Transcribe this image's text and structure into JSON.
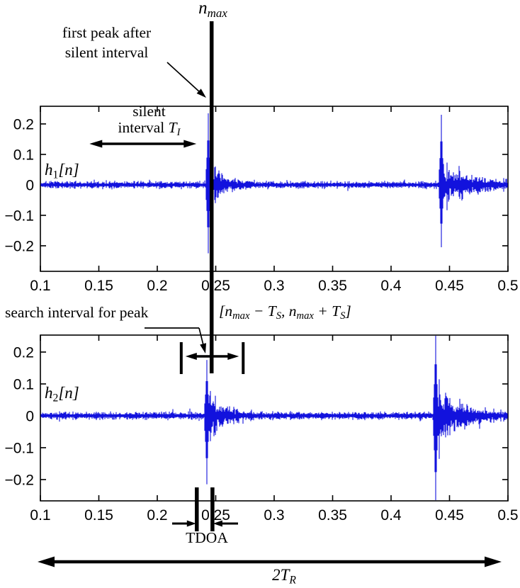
{
  "figure": {
    "bg": "#ffffff",
    "waveform_color": "#1212dd",
    "axis_color": "#000000",
    "text_color": "#000000"
  },
  "annotations": {
    "nmax": {
      "base": "n",
      "sub": "max"
    },
    "first_peak": {
      "line1": "first peak after",
      "line2": "silent interval"
    },
    "silent": {
      "line1": "silent",
      "line2_pre": "interval ",
      "T": "T",
      "T_sub": "I"
    },
    "h1": {
      "base": "h",
      "sub": "1",
      "rest": "[n]"
    },
    "h2": {
      "base": "h",
      "sub": "2",
      "rest": "[n]"
    },
    "search_text": "search interval for peak",
    "interval_expr": {
      "open": "[",
      "n1": "n",
      "sub1": "max",
      "minus": " − ",
      "T1": "T",
      "tsub1": "S",
      "comma": ", ",
      "n2": "n",
      "sub2": "max",
      "plus": " + ",
      "T2": "T",
      "tsub2": "S",
      "close": "]"
    },
    "tdoa": "TDOA",
    "two_tr": {
      "pre": "2",
      "T": "T",
      "sub": "R"
    }
  },
  "chart_data": [
    {
      "type": "line",
      "name": "h1[n]",
      "xlim": [
        0.1,
        0.5
      ],
      "ylim": [
        -0.284,
        0.258
      ],
      "xticks": [
        0.1,
        0.15,
        0.2,
        0.25,
        0.3,
        0.35,
        0.4,
        0.45,
        0.5
      ],
      "xtick_labels": [
        "0.1",
        "0.15",
        "0.2",
        "0.25",
        "0.3",
        "0.35",
        "0.4",
        "0.45",
        "0.5"
      ],
      "yticks": [
        0.2,
        0.1,
        0,
        -0.1,
        -0.2
      ],
      "ytick_labels": [
        "0.2",
        "0.1",
        "0",
        "−0.1",
        "−0.2"
      ],
      "noise_floor": 0.011,
      "bursts": [
        {
          "x": 0.2435,
          "peak_pos": 0.235,
          "peak_neg": -0.225,
          "tail_amp": 0.1,
          "decay": 0.012
        },
        {
          "x": 0.443,
          "peak_pos": 0.23,
          "peak_neg": -0.205,
          "tail_amp": 0.085,
          "decay": 0.025
        }
      ],
      "seed": 7
    },
    {
      "type": "line",
      "name": "h2[n]",
      "xlim": [
        0.1,
        0.5
      ],
      "ylim": [
        -0.267,
        0.253
      ],
      "xticks": [
        0.1,
        0.15,
        0.2,
        0.25,
        0.3,
        0.35,
        0.4,
        0.45,
        0.5
      ],
      "xtick_labels": [
        "0.1",
        "0.15",
        "0.2",
        "0.25",
        "0.3",
        "0.35",
        "0.4",
        "0.45",
        "0.5"
      ],
      "yticks": [
        0.2,
        0.1,
        0,
        -0.1,
        -0.2
      ],
      "ytick_labels": [
        "0.2",
        "0.1",
        "0",
        "−0.1",
        "−0.2"
      ],
      "noise_floor": 0.011,
      "bursts": [
        {
          "x": 0.2425,
          "peak_pos": 0.175,
          "peak_neg": -0.215,
          "tail_amp": 0.105,
          "decay": 0.013
        },
        {
          "x": 0.438,
          "peak_pos": 0.26,
          "peak_neg": -0.285,
          "tail_amp": 0.11,
          "decay": 0.022
        }
      ],
      "seed": 13
    }
  ],
  "markers": {
    "nmax_line_x": 0.2465,
    "silent_interval": {
      "from": 0.142,
      "to": 0.2335
    },
    "search_interval": {
      "from": 0.2205,
      "to": 0.2735
    },
    "tdoa_interval": {
      "from": 0.2338,
      "to": 0.2472
    }
  }
}
